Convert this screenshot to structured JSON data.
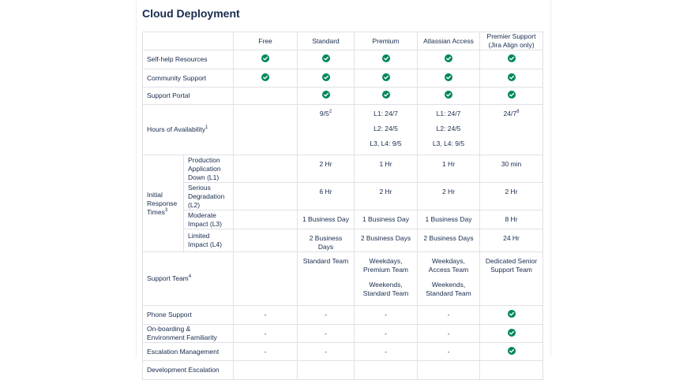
{
  "title": "Cloud Deployment",
  "table": {
    "columns": [
      "Free",
      "Standard",
      "Premium",
      "Atlassian Access",
      "Premier Support (Jira Align only)"
    ],
    "rows": [
      {
        "label": "Self-help Resources",
        "cells": [
          true,
          true,
          true,
          true,
          true
        ]
      },
      {
        "label": "Community Support",
        "cells": [
          true,
          true,
          true,
          true,
          true
        ]
      },
      {
        "label": "Support Portal",
        "cells": [
          null,
          true,
          true,
          true,
          true
        ]
      },
      {
        "label": "Hours of Availability",
        "label_sup": "1",
        "cells": [
          null,
          {
            "text": "9/5",
            "sup": "2"
          },
          [
            "L1: 24/7",
            "L2: 24/5",
            "L3, L4: 9/5"
          ],
          [
            "L1: 24/7",
            "L2: 24/5",
            "L3, L4: 9/5"
          ],
          {
            "text": "24/7",
            "sup": "8"
          }
        ]
      },
      {
        "label": "Initial Response Times",
        "label_sup": "3",
        "subrows": [
          {
            "label": "Production Application Down (L1)",
            "cells": [
              null,
              "2 Hr",
              "1 Hr",
              "1 Hr",
              "30 min"
            ]
          },
          {
            "label": "Serious Degradation (L2)",
            "cells": [
              null,
              "6 Hr",
              "2 Hr",
              "2 Hr",
              "2 Hr"
            ]
          },
          {
            "label": "Moderate Impact (L3)",
            "cells": [
              null,
              "1 Business Day",
              "1 Business Day",
              "1 Business Day",
              "8 Hr"
            ]
          },
          {
            "label": "Limited Impact (L4)",
            "cells": [
              null,
              "2 Business Days",
              "2 Business Days",
              "2 Business Days",
              "24 Hr"
            ]
          }
        ]
      },
      {
        "label": "Support Team",
        "label_sup": "4",
        "cells": [
          null,
          "Standard Team",
          [
            "Weekdays, Premium Team",
            "Weekends, Standard Team"
          ],
          [
            "Weekdays, Access Team",
            "Weekends, Standard Team"
          ],
          "Dedicated Senior Support Team"
        ]
      },
      {
        "label": "Phone Support",
        "cells": [
          "-",
          "-",
          "-",
          "-",
          true
        ]
      },
      {
        "label": "On-boarding & Environment Familiarity",
        "cells": [
          "-",
          "-",
          "-",
          "-",
          true
        ]
      },
      {
        "label": "Escalation Management",
        "cells": [
          "-",
          "-",
          "-",
          "-",
          true
        ]
      },
      {
        "label": "Development Escalation",
        "cells": [
          null,
          null,
          null,
          null,
          null
        ]
      }
    ]
  }
}
